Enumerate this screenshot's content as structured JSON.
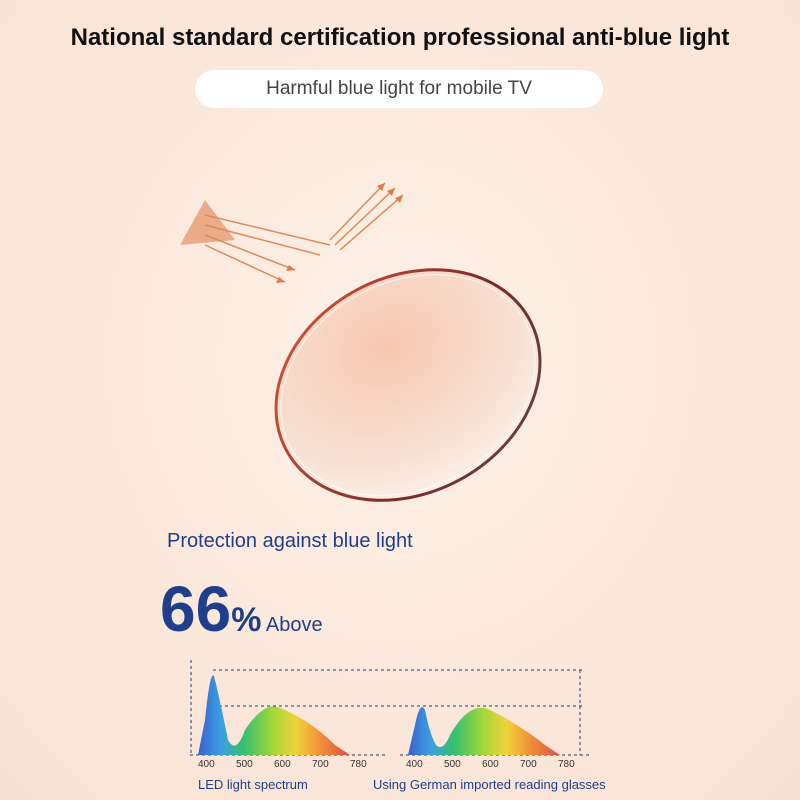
{
  "header": {
    "title": "National standard certification professional anti-blue light",
    "subtitle": "Harmful blue light for mobile TV"
  },
  "protection": {
    "label": "Protection against blue light",
    "number": "66",
    "unit": "%",
    "suffix": "Above"
  },
  "spectra": [
    {
      "caption": "LED light spectrum",
      "ticks": [
        "400",
        "500",
        "600",
        "700",
        "780"
      ]
    },
    {
      "caption": "Using German imported reading glasses",
      "ticks": [
        "400",
        "500",
        "600",
        "700",
        "780"
      ]
    }
  ]
}
